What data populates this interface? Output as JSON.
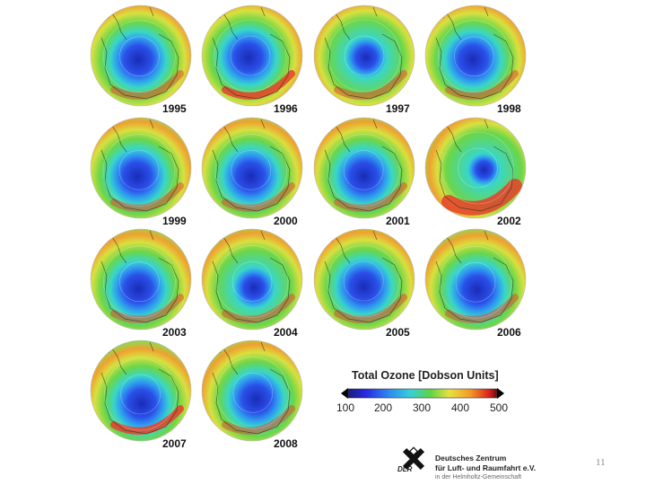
{
  "years": [
    "1995",
    "1996",
    "1997",
    "1998",
    "1999",
    "2000",
    "2001",
    "2002",
    "2003",
    "2004",
    "2005",
    "2006",
    "2007",
    "2008"
  ],
  "legend": {
    "title": "Total Ozone [Dobson Units]",
    "ticks": [
      "100",
      "200",
      "300",
      "400",
      "500"
    ]
  },
  "org": {
    "line1": "Deutsches Zentrum",
    "line2": "für Luft- und Raumfahrt e.V.",
    "line3": "in der Helmholtz-Gemeinschaft",
    "abbr": "DLR"
  },
  "page_number": "11",
  "colors": {
    "low": "#1a1aa8",
    "mid_low": "#2f6cf0",
    "mid": "#36c8d8",
    "green": "#5fd24a",
    "yellow": "#e8e040",
    "orange": "#f39a2a",
    "high": "#e23a20"
  }
}
